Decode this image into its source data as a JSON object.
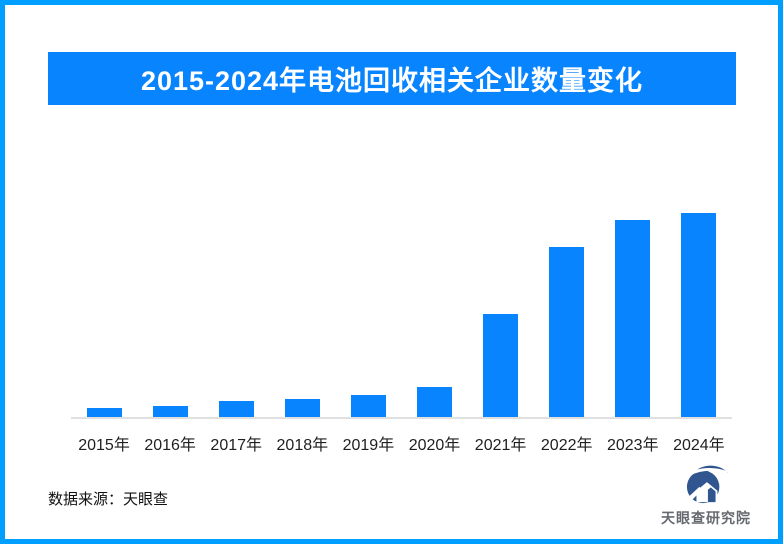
{
  "frame": {
    "border_color": "#009FFF"
  },
  "title_banner": {
    "text": "2015-2024年电池回收相关企业数量变化",
    "bg_color": "#0884FF",
    "text_color": "#FFFFFF"
  },
  "chart_data": {
    "type": "bar",
    "title": "2015-2024年电池回收相关企业数量变化",
    "categories": [
      "2015年",
      "2016年",
      "2017年",
      "2018年",
      "2019年",
      "2020年",
      "2021年",
      "2022年",
      "2023年",
      "2024年"
    ],
    "values": [
      10,
      12,
      17,
      19,
      23,
      31,
      104,
      171,
      198,
      205
    ],
    "value_unit": "relative (no y-axis tick labels shown in image)",
    "xlabel": "",
    "ylabel": "",
    "ylim": [
      0,
      228
    ],
    "grid": false,
    "legend": false,
    "bar_color": "#0884FF",
    "axis_line_color": "#E0E0E0"
  },
  "footer": {
    "source_label": "数据来源：天眼查",
    "logo_text": "天眼查研究院",
    "logo_color": "#31568F"
  }
}
